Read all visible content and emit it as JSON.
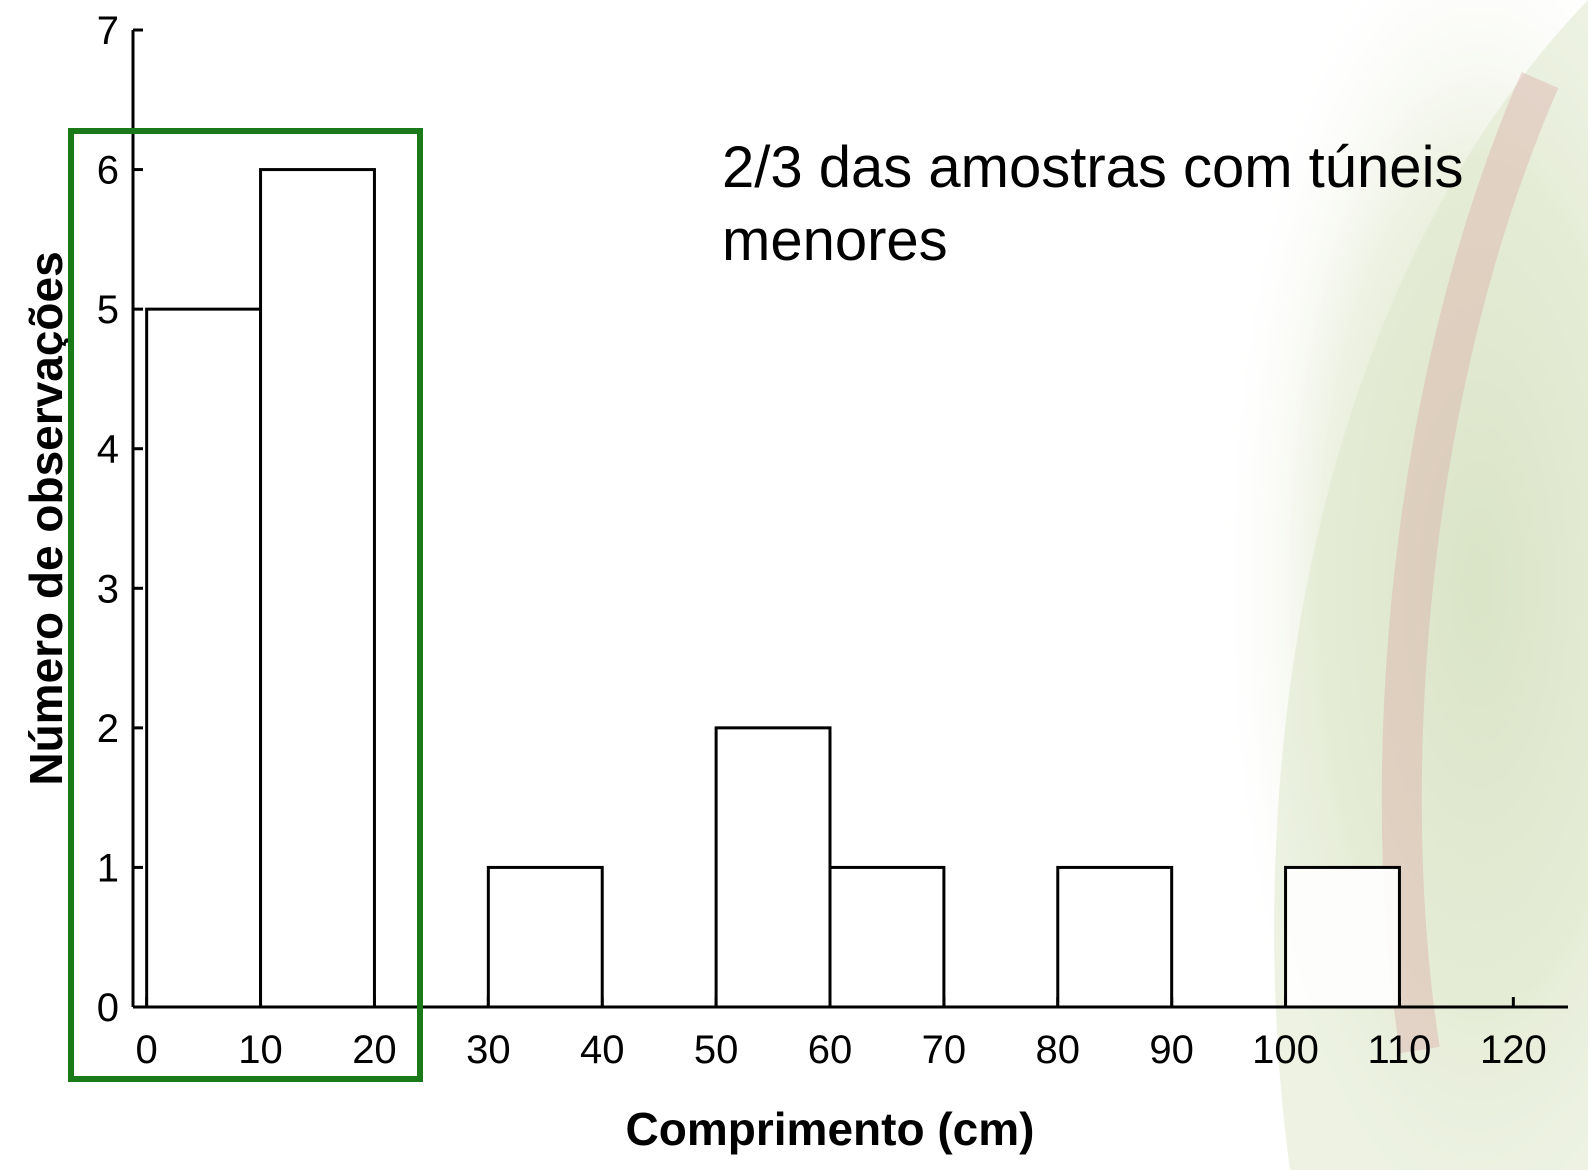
{
  "chart_data": {
    "type": "histogram",
    "x_label": "Comprimento (cm)",
    "y_label": "Número de observações",
    "annotation": [
      "2/3 das amostras  com túneis",
      "menores"
    ],
    "bins": [
      0,
      10,
      20,
      30,
      40,
      50,
      60,
      70,
      80,
      90,
      100,
      110,
      120
    ],
    "values": [
      5,
      6,
      0,
      1,
      0,
      2,
      1,
      0,
      1,
      0,
      1,
      0
    ],
    "color": "#ffffff",
    "edge_color": "#000000",
    "highlight_color": "#1a7a1a",
    "xlim": [
      -1.2,
      124.8
    ],
    "ylim": [
      0,
      7
    ],
    "xticks": [
      0,
      10,
      20,
      30,
      40,
      50,
      60,
      70,
      80,
      90,
      100,
      110,
      120
    ],
    "yticks": [
      0,
      1,
      2,
      3,
      4,
      5,
      6,
      7
    ]
  }
}
